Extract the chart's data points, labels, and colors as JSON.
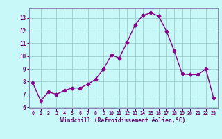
{
  "x": [
    0,
    1,
    2,
    3,
    4,
    5,
    6,
    7,
    8,
    9,
    10,
    11,
    12,
    13,
    14,
    15,
    16,
    17,
    18,
    19,
    20,
    21,
    22,
    23
  ],
  "y": [
    7.9,
    6.5,
    7.2,
    7.0,
    7.3,
    7.5,
    7.5,
    7.8,
    8.2,
    9.0,
    10.1,
    9.85,
    11.1,
    12.45,
    13.2,
    13.4,
    13.15,
    11.95,
    10.4,
    8.6,
    8.55,
    8.55,
    9.0,
    6.7
  ],
  "line_color": "#880088",
  "marker": "D",
  "markersize": 2.5,
  "linewidth": 1.0,
  "bg_color": "#c8f8f8",
  "grid_color": "#99cccc",
  "xlabel": "Windchill (Refroidissement éolien,°C)",
  "xlabel_color": "#660066",
  "tick_color": "#660066",
  "ylabel_ticks": [
    6,
    7,
    8,
    9,
    10,
    11,
    12,
    13
  ],
  "xlim": [
    -0.5,
    23.5
  ],
  "ylim": [
    5.9,
    13.75
  ],
  "xticks": [
    0,
    1,
    2,
    3,
    4,
    5,
    6,
    7,
    8,
    9,
    10,
    11,
    12,
    13,
    14,
    15,
    16,
    17,
    18,
    19,
    20,
    21,
    22,
    23
  ],
  "spine_color": "#7777aa",
  "axis_bg": "#ccffff"
}
